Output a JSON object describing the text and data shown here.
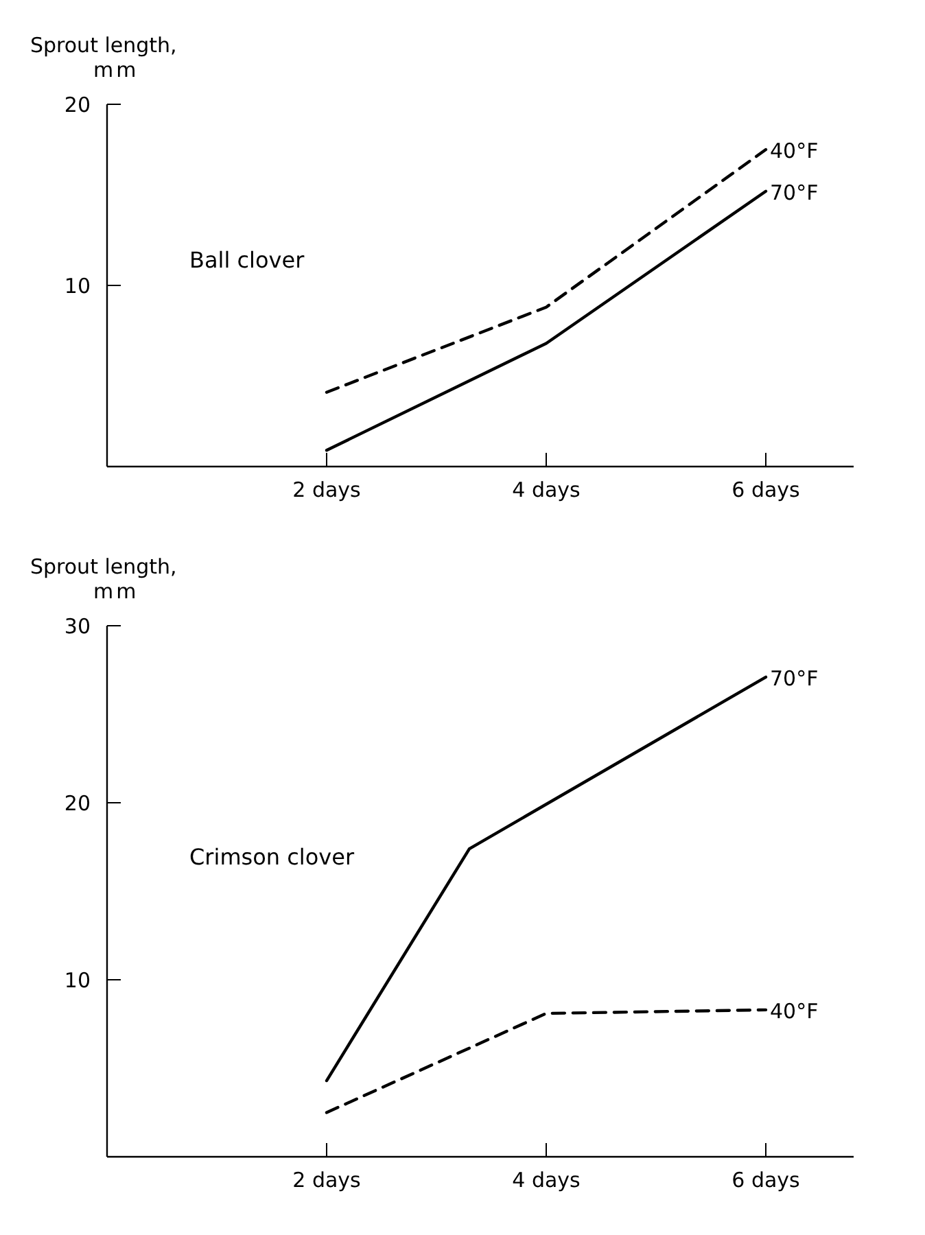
{
  "chart_data": [
    {
      "type": "line",
      "title": "Ball clover",
      "ylabel": "Sprout length, mm",
      "xlim": [
        0,
        6.8
      ],
      "xticks": [
        {
          "value": 2,
          "label": "2 days"
        },
        {
          "value": 4,
          "label": "4 days"
        },
        {
          "value": 6,
          "label": "6 days"
        }
      ],
      "ylim": [
        0,
        20
      ],
      "yticks": [
        10,
        20
      ],
      "grid": false,
      "series": [
        {
          "name": "40°F",
          "color": "#000000",
          "line_style": "dashed",
          "x": [
            2,
            4,
            6
          ],
          "values": [
            4.1,
            8.8,
            17.5
          ]
        },
        {
          "name": "70°F",
          "color": "#000000",
          "line_style": "solid",
          "x": [
            2,
            4,
            6
          ],
          "values": [
            0.9,
            6.8,
            15.2
          ]
        }
      ]
    },
    {
      "type": "line",
      "title": "Crimson clover",
      "ylabel": "Sprout length, mm",
      "xlim": [
        0,
        6.8
      ],
      "xticks": [
        {
          "value": 2,
          "label": "2 days"
        },
        {
          "value": 4,
          "label": "4 days"
        },
        {
          "value": 6,
          "label": "6 days"
        }
      ],
      "ylim": [
        0,
        30
      ],
      "yticks": [
        10,
        20,
        30
      ],
      "grid": false,
      "series": [
        {
          "name": "70°F",
          "color": "#000000",
          "line_style": "solid",
          "x": [
            2,
            3.3,
            6
          ],
          "values": [
            4.3,
            17.4,
            27.1
          ]
        },
        {
          "name": "40°F",
          "color": "#000000",
          "line_style": "dashed",
          "x": [
            2,
            4,
            6
          ],
          "values": [
            2.5,
            8.1,
            8.3
          ]
        }
      ]
    }
  ]
}
